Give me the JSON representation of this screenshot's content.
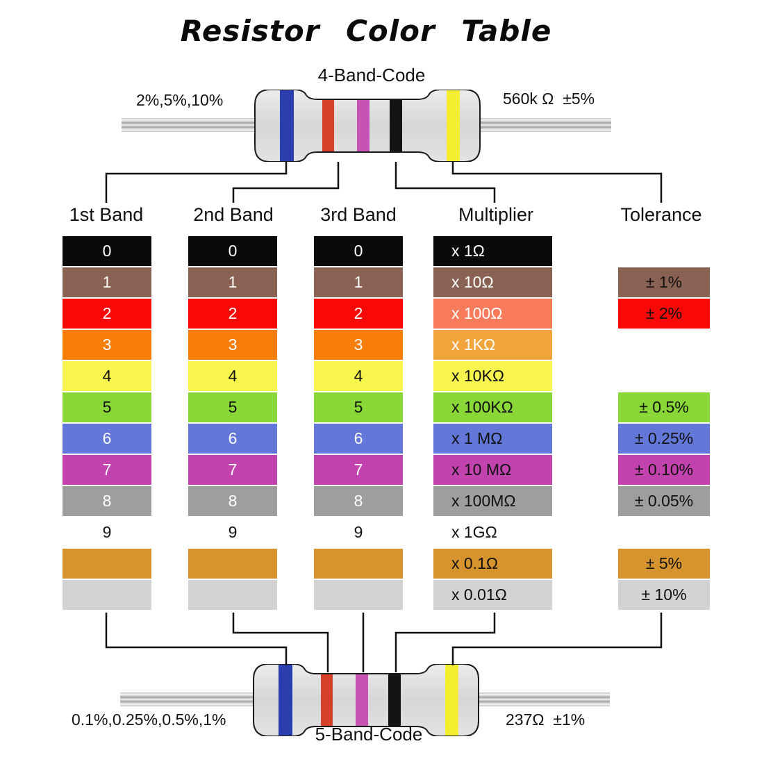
{
  "title": "Resistor Color Table",
  "top_resistor": {
    "code_label": "4-Band-Code",
    "tolerance_note": "2%,5%,10%",
    "value_note": "560k Ω  ±5%"
  },
  "bottom_resistor": {
    "code_label": "5-Band-Code",
    "tolerance_note": "0.1%,0.25%,0.5%,1%",
    "value_note": "237Ω  ±1%"
  },
  "band_colors": {
    "blue": "#2B3EAE",
    "red": "#D4402A",
    "violet": "#C654B5",
    "black": "#141414",
    "yellow": "#F5EE30"
  },
  "headers": {
    "band1": "1st Band",
    "band2": "2nd Band",
    "band3": "3rd Band",
    "multiplier": "Multiplier",
    "tolerance": "Tolerance"
  },
  "rows": [
    {
      "color": "black",
      "hex": "#0A0A0A",
      "digit": "0",
      "digit_text": "#FFFFFF",
      "multiplier": "x 1Ω",
      "multiplier_hex": "#0A0A0A",
      "multiplier_text": "#FFFFFF",
      "tolerance": "",
      "tolerance_hex": "",
      "tolerance_text": ""
    },
    {
      "color": "brown",
      "hex": "#8A6253",
      "digit": "1",
      "digit_text": "#FFFFFF",
      "multiplier": "x 10Ω",
      "multiplier_hex": "#8A6253",
      "multiplier_text": "#FFFFFF",
      "tolerance": "± 1%",
      "tolerance_hex": "#8A6253",
      "tolerance_text": "#111111"
    },
    {
      "color": "red",
      "hex": "#F90808",
      "digit": "2",
      "digit_text": "#FFFFFF",
      "multiplier": "x 100Ω",
      "multiplier_hex": "#F87C5C",
      "multiplier_text": "#FFFFFF",
      "tolerance": "± 2%",
      "tolerance_hex": "#F90808",
      "tolerance_text": "#111111"
    },
    {
      "color": "orange",
      "hex": "#F87D09",
      "digit": "3",
      "digit_text": "#FFFFFF",
      "multiplier": "x 1KΩ",
      "multiplier_hex": "#F2A43D",
      "multiplier_text": "#FFFFFF",
      "tolerance": "",
      "tolerance_hex": "",
      "tolerance_text": ""
    },
    {
      "color": "yellow",
      "hex": "#F7F54E",
      "digit": "4",
      "digit_text": "#111111",
      "multiplier": "x 10KΩ",
      "multiplier_hex": "#F7F54E",
      "multiplier_text": "#111111",
      "tolerance": "",
      "tolerance_hex": "",
      "tolerance_text": ""
    },
    {
      "color": "green",
      "hex": "#89D838",
      "digit": "5",
      "digit_text": "#111111",
      "multiplier": "x 100KΩ",
      "multiplier_hex": "#89D838",
      "multiplier_text": "#111111",
      "tolerance": "± 0.5%",
      "tolerance_hex": "#89D838",
      "tolerance_text": "#111111"
    },
    {
      "color": "blue",
      "hex": "#6377D8",
      "digit": "6",
      "digit_text": "#FFFFFF",
      "multiplier": "x 1 MΩ",
      "multiplier_hex": "#6377D8",
      "multiplier_text": "#111111",
      "tolerance": "± 0.25%",
      "tolerance_hex": "#6377D8",
      "tolerance_text": "#111111"
    },
    {
      "color": "violet",
      "hex": "#C243AE",
      "digit": "7",
      "digit_text": "#FFFFFF",
      "multiplier": "x 10 MΩ",
      "multiplier_hex": "#C243AE",
      "multiplier_text": "#111111",
      "tolerance": "± 0.10%",
      "tolerance_hex": "#C243AE",
      "tolerance_text": "#111111"
    },
    {
      "color": "gray",
      "hex": "#9E9E9E",
      "digit": "8",
      "digit_text": "#FFFFFF",
      "multiplier": "x 100MΩ",
      "multiplier_hex": "#9E9E9E",
      "multiplier_text": "#111111",
      "tolerance": "± 0.05%",
      "tolerance_hex": "#9E9E9E",
      "tolerance_text": "#111111"
    },
    {
      "color": "white",
      "hex": "#FFFFFF",
      "digit": "9",
      "digit_text": "#111111",
      "multiplier": "x 1GΩ",
      "multiplier_hex": "#FFFFFF",
      "multiplier_text": "#111111",
      "tolerance": "",
      "tolerance_hex": "",
      "tolerance_text": ""
    },
    {
      "color": "gold",
      "hex": "#D6942F",
      "digit": "",
      "digit_text": "#111111",
      "multiplier": "x 0.1Ω",
      "multiplier_hex": "#D6942F",
      "multiplier_text": "#111111",
      "tolerance": "± 5%",
      "tolerance_hex": "#D6942F",
      "tolerance_text": "#111111"
    },
    {
      "color": "silver",
      "hex": "#D3D3D3",
      "digit": "",
      "digit_text": "#111111",
      "multiplier": "x 0.01Ω",
      "multiplier_hex": "#D3D3D3",
      "multiplier_text": "#111111",
      "tolerance": "± 10%",
      "tolerance_hex": "#D3D3D3",
      "tolerance_text": "#111111"
    }
  ]
}
